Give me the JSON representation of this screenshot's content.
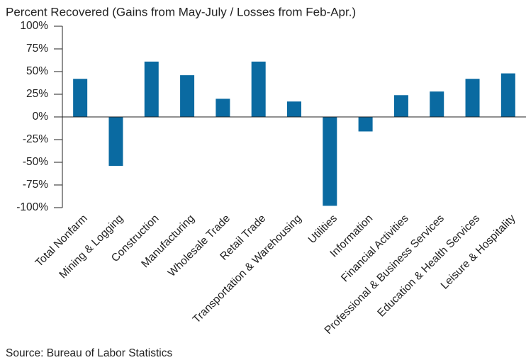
{
  "chart_data": {
    "type": "bar",
    "title": "Percent Recovered (Gains from May-July / Losses from Feb-Apr.)",
    "source": "Source: Bureau of Labor Statistics",
    "categories": [
      "Total Nonfarm",
      "Mining & Logging",
      "Construction",
      "Manufacturing",
      "Wholesale Trade",
      "Retail Trade",
      "Transportation & Warehousing",
      "Utilities",
      "Information",
      "Financial Activities",
      "Professional & Business Services",
      "Education & Health Services",
      "Leisure & Hospitality"
    ],
    "values": [
      42,
      -54,
      61,
      46,
      20,
      61,
      17,
      -98,
      -16,
      24,
      28,
      42,
      48
    ],
    "color": "#0a6aa1",
    "ylim": [
      -100,
      100
    ],
    "yticks": [
      {
        "value": -100,
        "label": "-100%"
      },
      {
        "value": -75,
        "label": "-75%"
      },
      {
        "value": -50,
        "label": "-50%"
      },
      {
        "value": -25,
        "label": "-25%"
      },
      {
        "value": 0,
        "label": "0%"
      },
      {
        "value": 25,
        "label": "25%"
      },
      {
        "value": 50,
        "label": "50%"
      },
      {
        "value": 75,
        "label": "75%"
      },
      {
        "value": 100,
        "label": "100%"
      }
    ],
    "grid": false
  }
}
